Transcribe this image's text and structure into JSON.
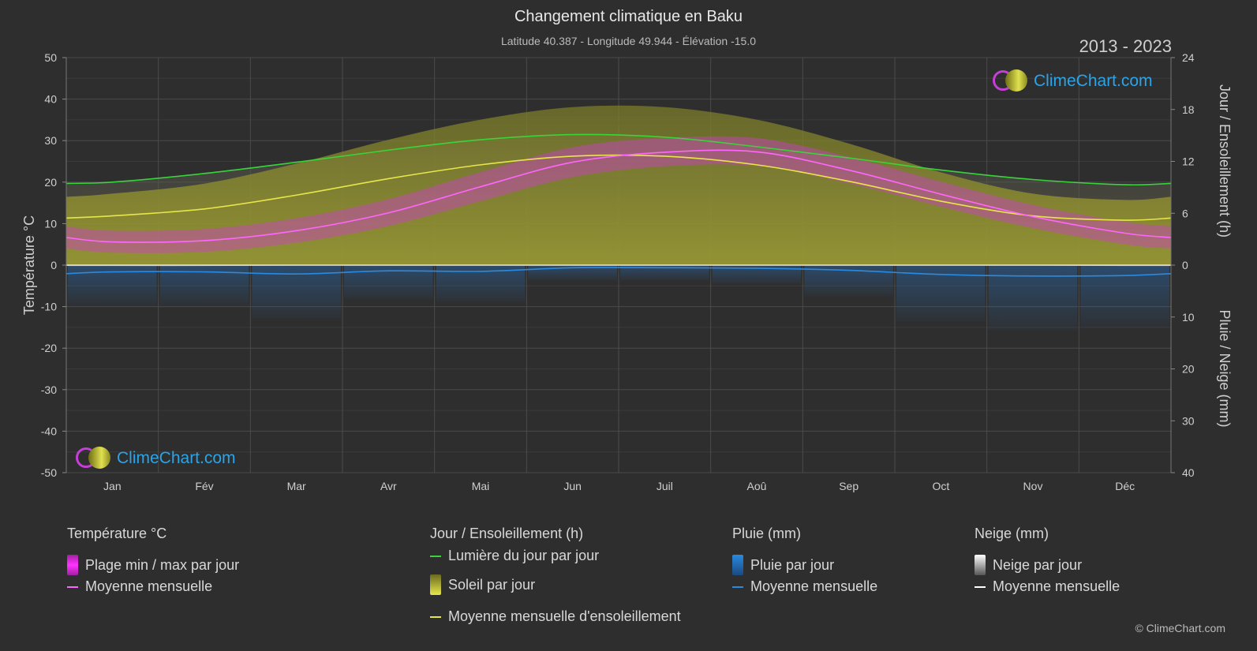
{
  "header": {
    "title": "Changement climatique en Baku",
    "subtitle": "Latitude 40.387 - Longitude 49.944 - Élévation -15.0",
    "period": "2013 - 2023"
  },
  "logo": {
    "text": "ClimeChart.com"
  },
  "copyright": "© ClimeChart.com",
  "colors": {
    "background": "#2e2e2e",
    "daylight": "#3ad43a",
    "sunshine_line": "#e6e64a",
    "sunshine_fill": "#8f8f2e",
    "temp_range": "#d43ad4",
    "temp_mean": "#ff66ff",
    "rain": "#2a7fd0",
    "snow": "#ffffff"
  },
  "chart_data": {
    "type": "area",
    "title": "Changement climatique en Baku",
    "left_axis": {
      "label": "Température °C",
      "ylim": [
        -50,
        50
      ],
      "ticks": [
        "50",
        "40",
        "30",
        "20",
        "10",
        "0",
        "-10",
        "-20",
        "-30",
        "-40",
        "-50"
      ]
    },
    "right_axis_top": {
      "label": "Jour / Ensoleillement (h)",
      "ylim": [
        0,
        24
      ],
      "ticks": [
        "24",
        "18",
        "12",
        "6",
        "0"
      ]
    },
    "right_axis_bottom": {
      "label": "Pluie / Neige (mm)",
      "ylim": [
        0,
        40
      ],
      "ticks": [
        "10",
        "20",
        "30",
        "40"
      ]
    },
    "categories": [
      "Jan",
      "Fév",
      "Mar",
      "Avr",
      "Mai",
      "Jun",
      "Juil",
      "Aoû",
      "Sep",
      "Oct",
      "Nov",
      "Déc"
    ],
    "grid": true,
    "series": [
      {
        "name": "Lumière du jour par jour",
        "unit": "h",
        "values": [
          9.6,
          10.6,
          11.9,
          13.3,
          14.5,
          15.1,
          14.8,
          13.7,
          12.4,
          11.0,
          9.9,
          9.3
        ]
      },
      {
        "name": "Moyenne mensuelle d'ensoleillement",
        "unit": "h",
        "values": [
          5.7,
          6.5,
          8.1,
          10.0,
          11.6,
          12.6,
          12.6,
          11.6,
          9.7,
          7.4,
          5.7,
          5.2
        ]
      },
      {
        "name": "Moyenne mensuelle",
        "group": "Température °C",
        "unit": "°C",
        "values": [
          5.6,
          5.9,
          8.3,
          12.6,
          18.9,
          24.8,
          27.2,
          27.3,
          22.9,
          17.1,
          11.7,
          7.7
        ]
      },
      {
        "name": "Plage min / max par jour",
        "group": "Température °C",
        "unit": "°C",
        "min": [
          3.0,
          3.2,
          5.4,
          9.4,
          15.4,
          21.2,
          23.8,
          23.9,
          19.7,
          14.1,
          8.9,
          5.0
        ],
        "max": [
          8.3,
          8.7,
          11.3,
          15.9,
          22.4,
          28.4,
          30.6,
          30.6,
          26.1,
          20.1,
          14.5,
          10.4
        ]
      },
      {
        "name": "Moyenne mensuelle",
        "group": "Pluie (mm)",
        "unit": "mm",
        "values": [
          1.3,
          1.3,
          1.7,
          1.1,
          1.2,
          0.5,
          0.5,
          0.6,
          1.0,
          1.8,
          2.1,
          2.0
        ]
      },
      {
        "name": "Moyenne mensuelle",
        "group": "Neige (mm)",
        "unit": "mm",
        "values": [
          0.1,
          0.1,
          0.0,
          0.0,
          0.0,
          0.0,
          0.0,
          0.0,
          0.0,
          0.0,
          0.0,
          0.1
        ]
      }
    ]
  },
  "legend": {
    "temperature": {
      "heading": "Température °C",
      "range": "Plage min / max par jour",
      "mean": "Moyenne mensuelle"
    },
    "sun": {
      "heading": "Jour / Ensoleillement (h)",
      "daylight": "Lumière du jour par jour",
      "sunshine": "Soleil par jour",
      "sun_mean": "Moyenne mensuelle d'ensoleillement"
    },
    "rain": {
      "heading": "Pluie (mm)",
      "daily": "Pluie par jour",
      "mean": "Moyenne mensuelle"
    },
    "snow": {
      "heading": "Neige (mm)",
      "daily": "Neige par jour",
      "mean": "Moyenne mensuelle"
    }
  }
}
